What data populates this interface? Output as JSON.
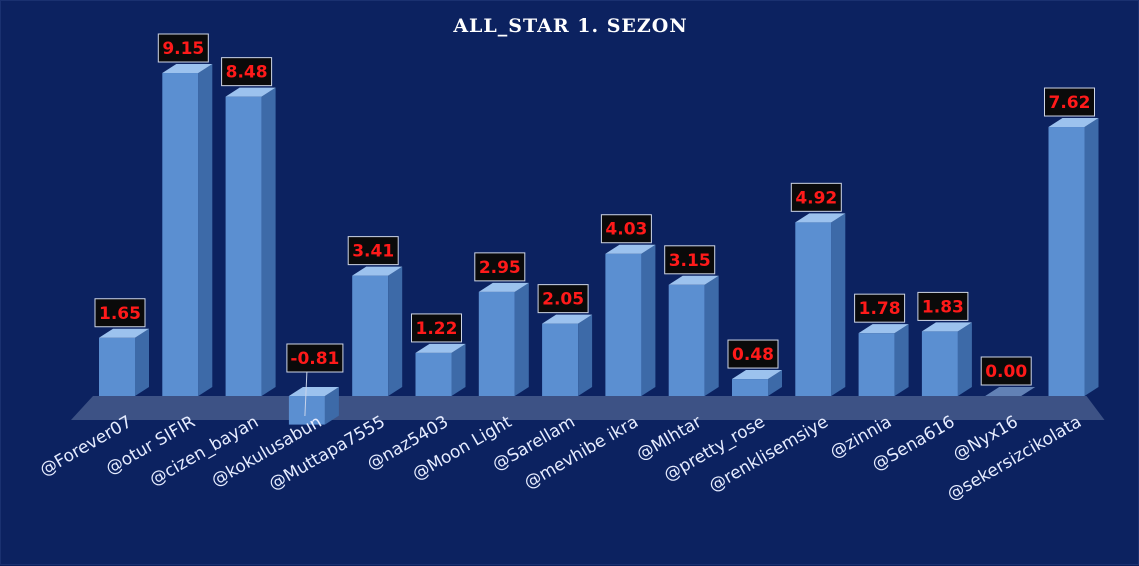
{
  "chart_data": {
    "type": "bar",
    "title": "ALL_STAR 1. SEZON",
    "categories": [
      "@Forever07",
      "@otur SIFIR",
      "@cizen_bayan",
      "@kokulusabun",
      "@Muttapa7555",
      "@naz5403",
      "@Moon Light",
      "@Sarellam",
      "@mevhibe ikra",
      "@MIhtar",
      "@pretty_rose",
      "@renklisemsiye",
      "@zinnia",
      "@Sena616",
      "@Nyx16",
      "@sekersizcikolata"
    ],
    "values": [
      1.65,
      9.15,
      8.48,
      -0.81,
      3.41,
      1.22,
      2.95,
      2.05,
      4.03,
      3.15,
      0.48,
      4.92,
      1.78,
      1.83,
      0.0,
      7.62
    ],
    "value_labels": [
      "1.65",
      "9.15",
      "8.48",
      "-0.81",
      "3.41",
      "1.22",
      "2.95",
      "2.05",
      "4.03",
      "3.15",
      "0.48",
      "4.92",
      "1.78",
      "1.83",
      "0.00",
      "7.62"
    ],
    "xlabel": "",
    "ylabel": "",
    "grid": false,
    "legend": "none",
    "style": "3d-columns"
  },
  "colors": {
    "background": "#0c2260",
    "bar_front": "#5b8fd1",
    "bar_side": "#3d6aa8",
    "bar_top": "#9cc2ee",
    "label_box": "#0a0a0a",
    "label_text": "#ff1a1a",
    "floor": "#4a5f8f"
  }
}
